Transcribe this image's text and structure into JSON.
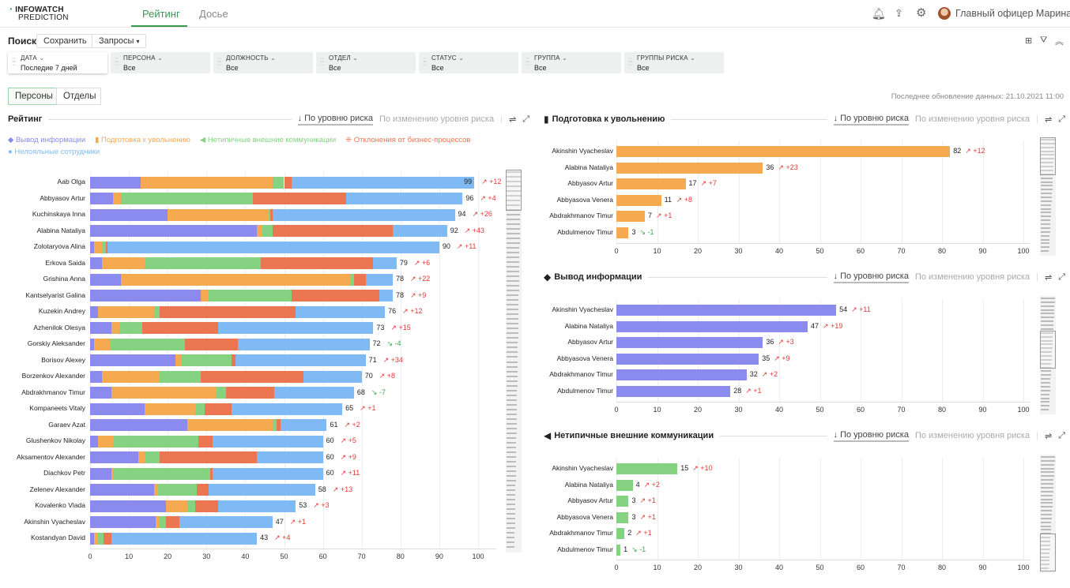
{
  "header": {
    "logo_line1": "INFOWATCH",
    "logo_line2": "PREDICTION",
    "tabs": [
      {
        "label": "Рейтинг",
        "active": true
      },
      {
        "label": "Досье",
        "active": false
      }
    ],
    "icons": [
      "bell-icon",
      "upload-icon",
      "gear-icon"
    ],
    "user": "Главный офицер Марина",
    "accent": "#3a9a4f"
  },
  "search": {
    "label": "Поиск",
    "save": "Сохранить",
    "queries": "Запросы",
    "queries_arrow": "▾"
  },
  "filters": [
    {
      "key": "ДАТА",
      "value": "Последие 7 дней"
    },
    {
      "key": "ПЕРСОНА",
      "value": "Все"
    },
    {
      "key": "ДОЛЖНОСТЬ",
      "value": "Все"
    },
    {
      "key": "ОТДЕЛ",
      "value": "Все"
    },
    {
      "key": "СТАТУС",
      "value": "Все"
    },
    {
      "key": "ГРУППА",
      "value": "Все"
    },
    {
      "key": "ГРУППЫ РИСКА",
      "value": "Все"
    }
  ],
  "view": {
    "persons": "Персоны",
    "departments": "Отделы",
    "active": "Персоны"
  },
  "last_update": "Последнее обновление данных: 21.10.2021 11:00",
  "sort": {
    "by_level": "↓ По уровню риска",
    "by_change": "По изменению уровня риска"
  },
  "colors": {
    "info": "#8b8bef",
    "dismissal": "#f5a951",
    "comms": "#86d283",
    "process": "#eb7651",
    "disloyal": "#80baf5",
    "up": "#e53935",
    "down": "#3aa84a"
  },
  "chart_data": [
    {
      "type": "bar",
      "stacked": true,
      "orientation": "horizontal",
      "title": "Рейтинг",
      "xlim": [
        0,
        100
      ],
      "xticks": [
        0,
        10,
        20,
        30,
        40,
        50,
        60,
        70,
        80,
        90,
        100
      ],
      "grid": true,
      "legend": "top-left",
      "categories": [
        "Aab Olga",
        "Abbyasov Artur",
        "Kuchinskaya Inna",
        "Alabina Nataliya",
        "Zolotaryova Alina",
        "Erkova Saida",
        "Grishina Anna",
        "Kantselyarist Galina",
        "Kuzekin Andrey",
        "Azhenilok Olesya",
        "Gorskiy Aleksander",
        "Borisov Alexey",
        "Borzenkov Alexander",
        "Abdrakhmanov Timur",
        "Kompaneets Vitaly",
        "Garaev Azat",
        "Glushenkov Nikolay",
        "Aksamentov Alexander",
        "Diachkov Petr",
        "Zelenev Alexander",
        "Kovalenko Vlada",
        "Akinshin Vyacheslav",
        "Kostandyan David"
      ],
      "series": [
        {
          "name": "Вывод информации",
          "color": "#8b8bef",
          "values": [
            13,
            6,
            20,
            43,
            1,
            3,
            8,
            28.5,
            2,
            5.5,
            1,
            22,
            3,
            5.5,
            14,
            25,
            2,
            12.5,
            5.5,
            16.5,
            19.5,
            17,
            1
          ]
        },
        {
          "name": "Подготовка к увольнению",
          "color": "#f5a951",
          "values": [
            34,
            2,
            26,
            1.5,
            2,
            11,
            59,
            2,
            14.5,
            2,
            4,
            1.5,
            15,
            27,
            13,
            22,
            4,
            1.5,
            0.5,
            1,
            5.5,
            1,
            1
          ]
        },
        {
          "name": "Нетипичные внешние коммуникации",
          "color": "#86d283",
          "values": [
            3,
            34,
            0.5,
            2.5,
            1,
            30,
            1,
            21.5,
            1.5,
            6,
            19.5,
            13,
            10.5,
            2.5,
            2.5,
            1,
            22,
            4,
            25,
            10,
            2,
            1.5,
            1.5
          ]
        },
        {
          "name": "Отклонения от бизнес-процессов",
          "color": "#eb7651",
          "values": [
            2,
            24,
            0.5,
            31,
            0.5,
            29,
            3,
            22.5,
            35,
            19.5,
            13.5,
            1,
            26.5,
            12.5,
            7,
            1,
            3.5,
            25,
            0.5,
            3,
            6,
            3.5,
            2
          ]
        },
        {
          "name": "Нелояльные сотрудники",
          "color": "#80baf5",
          "values": [
            47,
            30,
            47,
            14,
            85.5,
            6,
            7,
            3.5,
            23,
            40,
            34,
            33.5,
            15,
            20.5,
            28.5,
            12,
            28.5,
            17,
            28.5,
            27.5,
            20,
            24,
            37.5
          ]
        }
      ],
      "totals": [
        99,
        96,
        94,
        92,
        90,
        79,
        78,
        78,
        76,
        73,
        72,
        71,
        70,
        68,
        65,
        61,
        60,
        60,
        60,
        58,
        53,
        47,
        43
      ],
      "deltas": [
        "+12",
        "+4",
        "+26",
        "+43",
        "+11",
        "+6",
        "+22",
        "+9",
        "+12",
        "+15",
        "-4",
        "+34",
        "+8",
        "-7",
        "+1",
        "+2",
        "+5",
        "+9",
        "+11",
        "+13",
        "+3",
        "+1",
        "+4"
      ]
    },
    {
      "type": "bar",
      "orientation": "horizontal",
      "title": "Подготовка к увольнению",
      "icon": "door-icon",
      "color": "#f5a951",
      "xlim": [
        0,
        100
      ],
      "xticks": [
        0,
        10,
        20,
        30,
        40,
        50,
        60,
        70,
        80,
        90,
        100
      ],
      "grid": true,
      "categories": [
        "Akinshin Vyacheslav",
        "Alabina Nataliya",
        "Abbyasov Artur",
        "Abbyasova Venera",
        "Abdrakhmanov Timur",
        "Abdulmenov Timur"
      ],
      "values": [
        82,
        36,
        17,
        11,
        7,
        3
      ],
      "deltas": [
        "+12",
        "+23",
        "+7",
        "+8",
        "+1",
        "-1"
      ]
    },
    {
      "type": "bar",
      "orientation": "horizontal",
      "title": "Вывод информации",
      "icon": "usb-drive-icon",
      "color": "#8b8bef",
      "xlim": [
        0,
        100
      ],
      "xticks": [
        0,
        10,
        20,
        30,
        40,
        50,
        60,
        70,
        80,
        90,
        100
      ],
      "grid": true,
      "categories": [
        "Akinshin Vyacheslav",
        "Alabina Nataliya",
        "Abbyasov Artur",
        "Abbyasova Venera",
        "Abdrakhmanov Timur",
        "Abdulmenov Timur"
      ],
      "values": [
        54,
        47,
        36,
        35,
        32,
        28
      ],
      "deltas": [
        "+11",
        "+19",
        "+3",
        "+9",
        "+2",
        "+1"
      ]
    },
    {
      "type": "bar",
      "orientation": "horizontal",
      "title": "Нетипичные внешние коммуникации",
      "icon": "megaphone-icon",
      "color": "#86d283",
      "xlim": [
        0,
        100
      ],
      "xticks": [
        0,
        10,
        20,
        30,
        40,
        50,
        60,
        70,
        80,
        90,
        100
      ],
      "grid": true,
      "categories": [
        "Akinshin Vyacheslav",
        "Alabina Nataliya",
        "Abbyasov Artur",
        "Abbyasova Venera",
        "Abdrakhmanov Timur",
        "Abdulmenov Timur"
      ],
      "values": [
        15,
        4,
        3,
        3,
        2,
        1
      ],
      "deltas": [
        "+10",
        "+2",
        "+1",
        "+1",
        "+1",
        "-1"
      ]
    }
  ]
}
